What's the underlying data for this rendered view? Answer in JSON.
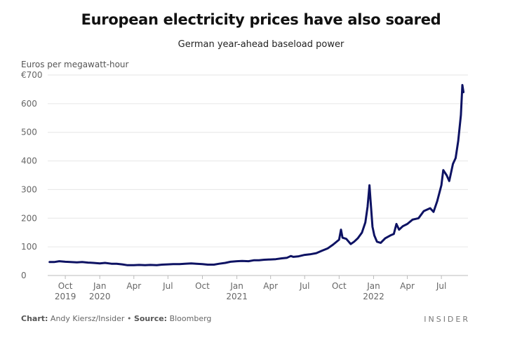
{
  "title": "European electricity prices have also soared",
  "footer": {
    "chart_label": "Chart:",
    "chart_author": "Andy Kiersz/Insider",
    "bullet": "•",
    "source_label": "Source:",
    "source_name": "Bloomberg",
    "logo": "INSIDER"
  },
  "colors": {
    "line": "#0d1263",
    "grid": "#e6e6e6",
    "axis": "#bbbbbb"
  },
  "chart_data": {
    "type": "line",
    "title": "European electricity prices have also soared",
    "subtitle": "German year-ahead baseload power",
    "ylabel": "Euros per megawatt-hour",
    "xlabel": "",
    "ylim": [
      0,
      700
    ],
    "yticks": [
      0,
      100,
      200,
      300,
      400,
      500,
      600,
      700
    ],
    "ytick_labels": [
      "0",
      "100",
      "200",
      "300",
      "400",
      "500",
      "600",
      "€700"
    ],
    "xlim": [
      "2019-08-15",
      "2022-09-10"
    ],
    "xticks": [
      {
        "date": "2019-10-01",
        "label": "Oct",
        "year": "2019"
      },
      {
        "date": "2020-01-01",
        "label": "Jan",
        "year": "2020"
      },
      {
        "date": "2020-04-01",
        "label": "Apr",
        "year": ""
      },
      {
        "date": "2020-07-01",
        "label": "Jul",
        "year": ""
      },
      {
        "date": "2020-10-01",
        "label": "Oct",
        "year": ""
      },
      {
        "date": "2021-01-01",
        "label": "Jan",
        "year": "2021"
      },
      {
        "date": "2021-04-01",
        "label": "Apr",
        "year": ""
      },
      {
        "date": "2021-07-01",
        "label": "Jul",
        "year": ""
      },
      {
        "date": "2021-10-01",
        "label": "Oct",
        "year": ""
      },
      {
        "date": "2022-01-01",
        "label": "Jan",
        "year": "2022"
      },
      {
        "date": "2022-04-01",
        "label": "Apr",
        "year": ""
      },
      {
        "date": "2022-07-01",
        "label": "Jul",
        "year": ""
      }
    ],
    "grid": true,
    "series": [
      {
        "name": "German year-ahead baseload power",
        "points": [
          [
            "2019-08-20",
            47
          ],
          [
            "2019-09-01",
            47
          ],
          [
            "2019-09-15",
            50
          ],
          [
            "2019-10-01",
            48
          ],
          [
            "2019-10-15",
            47
          ],
          [
            "2019-11-01",
            46
          ],
          [
            "2019-11-15",
            47
          ],
          [
            "2019-12-01",
            45
          ],
          [
            "2019-12-15",
            44
          ],
          [
            "2020-01-01",
            42
          ],
          [
            "2020-01-15",
            44
          ],
          [
            "2020-02-01",
            41
          ],
          [
            "2020-02-15",
            41
          ],
          [
            "2020-03-01",
            39
          ],
          [
            "2020-03-15",
            36
          ],
          [
            "2020-04-01",
            36
          ],
          [
            "2020-04-15",
            37
          ],
          [
            "2020-05-01",
            36
          ],
          [
            "2020-05-15",
            37
          ],
          [
            "2020-06-01",
            36
          ],
          [
            "2020-06-15",
            38
          ],
          [
            "2020-07-01",
            39
          ],
          [
            "2020-07-15",
            40
          ],
          [
            "2020-08-01",
            40
          ],
          [
            "2020-08-15",
            41
          ],
          [
            "2020-09-01",
            42
          ],
          [
            "2020-09-15",
            41
          ],
          [
            "2020-10-01",
            40
          ],
          [
            "2020-10-15",
            38
          ],
          [
            "2020-11-01",
            38
          ],
          [
            "2020-11-15",
            41
          ],
          [
            "2020-12-01",
            44
          ],
          [
            "2020-12-15",
            48
          ],
          [
            "2021-01-01",
            50
          ],
          [
            "2021-01-15",
            51
          ],
          [
            "2021-02-01",
            50
          ],
          [
            "2021-02-15",
            53
          ],
          [
            "2021-03-01",
            53
          ],
          [
            "2021-03-15",
            55
          ],
          [
            "2021-04-01",
            56
          ],
          [
            "2021-04-15",
            57
          ],
          [
            "2021-05-01",
            60
          ],
          [
            "2021-05-15",
            62
          ],
          [
            "2021-05-25",
            68
          ],
          [
            "2021-06-01",
            65
          ],
          [
            "2021-06-15",
            67
          ],
          [
            "2021-07-01",
            72
          ],
          [
            "2021-07-15",
            74
          ],
          [
            "2021-08-01",
            78
          ],
          [
            "2021-08-15",
            86
          ],
          [
            "2021-09-01",
            95
          ],
          [
            "2021-09-15",
            108
          ],
          [
            "2021-10-01",
            125
          ],
          [
            "2021-10-06",
            160
          ],
          [
            "2021-10-10",
            132
          ],
          [
            "2021-10-20",
            128
          ],
          [
            "2021-11-01",
            110
          ],
          [
            "2021-11-10",
            118
          ],
          [
            "2021-11-20",
            130
          ],
          [
            "2021-12-01",
            150
          ],
          [
            "2021-12-10",
            185
          ],
          [
            "2021-12-16",
            240
          ],
          [
            "2021-12-21",
            315
          ],
          [
            "2021-12-24",
            260
          ],
          [
            "2021-12-29",
            170
          ],
          [
            "2022-01-03",
            140
          ],
          [
            "2022-01-10",
            118
          ],
          [
            "2022-01-20",
            114
          ],
          [
            "2022-02-01",
            130
          ],
          [
            "2022-02-15",
            140
          ],
          [
            "2022-02-24",
            145
          ],
          [
            "2022-03-03",
            180
          ],
          [
            "2022-03-10",
            160
          ],
          [
            "2022-03-20",
            172
          ],
          [
            "2022-04-01",
            180
          ],
          [
            "2022-04-15",
            195
          ],
          [
            "2022-05-01",
            200
          ],
          [
            "2022-05-15",
            225
          ],
          [
            "2022-06-01",
            235
          ],
          [
            "2022-06-10",
            222
          ],
          [
            "2022-06-20",
            260
          ],
          [
            "2022-07-01",
            315
          ],
          [
            "2022-07-06",
            368
          ],
          [
            "2022-07-15",
            350
          ],
          [
            "2022-07-22",
            330
          ],
          [
            "2022-08-01",
            390
          ],
          [
            "2022-08-08",
            410
          ],
          [
            "2022-08-15",
            470
          ],
          [
            "2022-08-22",
            560
          ],
          [
            "2022-08-26",
            665
          ],
          [
            "2022-08-29",
            640
          ]
        ]
      }
    ]
  }
}
